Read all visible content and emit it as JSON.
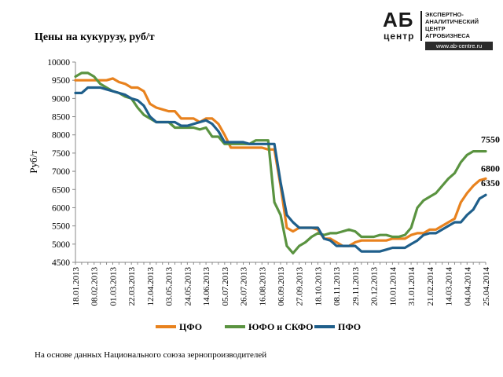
{
  "header": {
    "title": "Цены на кукурузу, руб/т",
    "logo": {
      "mark": "АБ",
      "mark_sub": "центр",
      "lines": [
        "ЭКСПЕРТНО-",
        "АНАЛИТИЧЕСКИЙ",
        "ЦЕНТР",
        "АГРОБИЗНЕСА"
      ],
      "url": "www.ab-centre.ru"
    }
  },
  "footer": {
    "source": "На основе данных Национального союза зернопроизводителей"
  },
  "chart_data": {
    "type": "line",
    "title": "Цены на кукурузу, руб/т",
    "ylabel": "Руб/т",
    "xlabel": "",
    "ylim": [
      4500,
      10000
    ],
    "yticks": [
      4500,
      5000,
      5500,
      6000,
      6500,
      7000,
      7500,
      8000,
      8500,
      9000,
      9500,
      10000
    ],
    "grid": false,
    "legend_position": "bottom",
    "x": [
      "18.01.2013",
      "25.01.2013",
      "01.02.2013",
      "08.02.2013",
      "15.02.2013",
      "22.02.2013",
      "01.03.2013",
      "08.03.2013",
      "15.03.2013",
      "22.03.2013",
      "29.03.2013",
      "05.04.2013",
      "12.04.2013",
      "19.04.2013",
      "26.04.2013",
      "03.05.2013",
      "10.05.2013",
      "17.05.2013",
      "24.05.2013",
      "31.05.2013",
      "07.06.2013",
      "14.06.2013",
      "21.06.2013",
      "28.06.2013",
      "05.07.2013",
      "12.07.2013",
      "19.07.2013",
      "26.07.2013",
      "02.08.2013",
      "09.08.2013",
      "16.08.2013",
      "23.08.2013",
      "30.08.2013",
      "06.09.2013",
      "13.09.2013",
      "20.09.2013",
      "27.09.2013",
      "04.10.2013",
      "11.10.2013",
      "18.10.2013",
      "25.10.2013",
      "01.11.2013",
      "08.11.2013",
      "15.11.2013",
      "22.11.2013",
      "29.11.2013",
      "06.12.2013",
      "13.12.2013",
      "20.12.2013",
      "27.12.2013",
      "03.01.2014",
      "10.01.2014",
      "17.01.2014",
      "24.01.2014",
      "31.01.2014",
      "07.02.2014",
      "14.02.2014",
      "21.02.2014",
      "28.02.2014",
      "07.03.2014",
      "14.03.2014",
      "21.03.2014",
      "28.03.2014",
      "04.04.2014",
      "11.04.2014",
      "18.04.2014",
      "25.04.2014"
    ],
    "xticks": [
      "18.01.2013",
      "08.02.2013",
      "01.03.2013",
      "22.03.2013",
      "12.04.2013",
      "03.05.2013",
      "24.05.2013",
      "14.06.2013",
      "05.07.2013",
      "26.07.2013",
      "16.08.2013",
      "06.09.2013",
      "27.09.2013",
      "18.10.2013",
      "08.11.2013",
      "29.11.2013",
      "20.12.2013",
      "10.01.2014",
      "31.01.2014",
      "21.02.2014",
      "14.03.2014",
      "04.04.2014",
      "25.04.2014"
    ],
    "series": [
      {
        "name": "ЦФО",
        "color": "#E8821E",
        "end_label": "6800",
        "values": [
          9500,
          9500,
          9500,
          9500,
          9500,
          9500,
          9550,
          9450,
          9400,
          9300,
          9300,
          9200,
          8850,
          8750,
          8700,
          8650,
          8650,
          8450,
          8450,
          8450,
          8350,
          8450,
          8450,
          8300,
          8000,
          7650,
          7650,
          7650,
          7650,
          7650,
          7650,
          7600,
          7600,
          6600,
          5450,
          5350,
          5450,
          5450,
          5450,
          5400,
          5150,
          5150,
          5050,
          4950,
          4950,
          5050,
          5100,
          5100,
          5100,
          5100,
          5100,
          5150,
          5150,
          5150,
          5250,
          5300,
          5300,
          5400,
          5400,
          5500,
          5600,
          5700,
          6150,
          6400,
          6600,
          6750,
          6800
        ]
      },
      {
        "name": "ЮФО и СКФО",
        "color": "#5A9340",
        "end_label": "7550",
        "values": [
          9600,
          9700,
          9700,
          9600,
          9400,
          9300,
          9200,
          9150,
          9050,
          9000,
          8750,
          8550,
          8450,
          8350,
          8350,
          8350,
          8200,
          8200,
          8200,
          8200,
          8150,
          8200,
          7950,
          7950,
          7750,
          7750,
          7750,
          7750,
          7750,
          7850,
          7850,
          7850,
          6150,
          5800,
          4950,
          4750,
          4950,
          5050,
          5200,
          5300,
          5250,
          5300,
          5300,
          5350,
          5400,
          5350,
          5200,
          5200,
          5200,
          5250,
          5250,
          5200,
          5200,
          5250,
          5450,
          6000,
          6200,
          6300,
          6400,
          6600,
          6800,
          6950,
          7250,
          7450,
          7550,
          7550,
          7550
        ]
      },
      {
        "name": "ПФО",
        "color": "#1F5F8B",
        "end_label": "6350",
        "values": [
          9150,
          9150,
          9300,
          9300,
          9300,
          9250,
          9200,
          9150,
          9100,
          9000,
          8950,
          8800,
          8500,
          8350,
          8350,
          8350,
          8350,
          8250,
          8250,
          8300,
          8350,
          8400,
          8300,
          8100,
          7800,
          7800,
          7800,
          7800,
          7750,
          7750,
          7750,
          7750,
          7750,
          6700,
          5800,
          5600,
          5450,
          5450,
          5450,
          5450,
          5150,
          5100,
          4950,
          4950,
          4950,
          4950,
          4800,
          4800,
          4800,
          4800,
          4850,
          4900,
          4900,
          4900,
          5000,
          5100,
          5250,
          5300,
          5300,
          5400,
          5500,
          5600,
          5600,
          5800,
          5950,
          6250,
          6350
        ]
      }
    ]
  }
}
